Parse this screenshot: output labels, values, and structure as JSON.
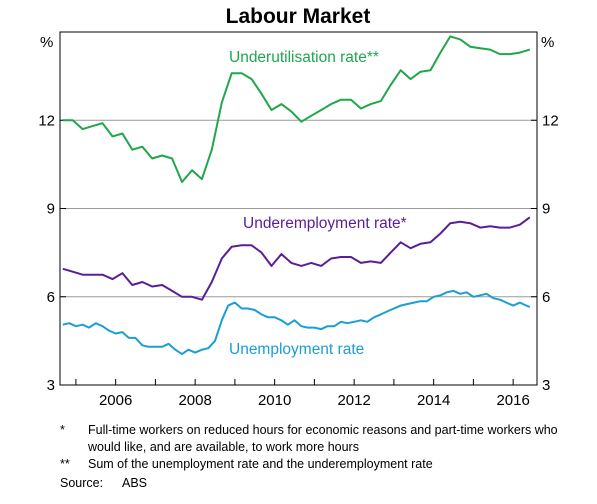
{
  "chart_data": {
    "type": "line",
    "title": "Labour Market",
    "y_unit_left": "%",
    "y_unit_right": "%",
    "ylim": [
      3,
      15
    ],
    "yticks": [
      3,
      6,
      9,
      12
    ],
    "xlim": [
      2004.6,
      2016.6
    ],
    "xticks": [
      2006,
      2008,
      2010,
      2012,
      2014,
      2016
    ],
    "grid": "horizontal",
    "colors": {
      "underutilisation": "#1fa74a",
      "underemployment": "#5a1e96",
      "unemployment": "#1a9ed3"
    },
    "series": [
      {
        "key": "underutilisation",
        "name": "Underutilisation rate**",
        "x": [
          2004.67,
          2004.92,
          2005.17,
          2005.42,
          2005.67,
          2005.92,
          2006.17,
          2006.42,
          2006.67,
          2006.92,
          2007.17,
          2007.42,
          2007.67,
          2007.92,
          2008.17,
          2008.42,
          2008.67,
          2008.92,
          2009.17,
          2009.42,
          2009.67,
          2009.92,
          2010.17,
          2010.42,
          2010.67,
          2010.92,
          2011.17,
          2011.42,
          2011.67,
          2011.92,
          2012.17,
          2012.42,
          2012.67,
          2012.92,
          2013.17,
          2013.42,
          2013.67,
          2013.92,
          2014.17,
          2014.42,
          2014.67,
          2014.92,
          2015.17,
          2015.42,
          2015.67,
          2015.92,
          2016.17,
          2016.42
        ],
        "y": [
          12.0,
          12.0,
          11.7,
          11.8,
          11.9,
          11.45,
          11.55,
          11.0,
          11.1,
          10.7,
          10.8,
          10.7,
          9.9,
          10.3,
          10.0,
          11.0,
          12.6,
          13.6,
          13.6,
          13.4,
          12.9,
          12.35,
          12.55,
          12.3,
          11.95,
          12.15,
          12.35,
          12.55,
          12.7,
          12.7,
          12.4,
          12.55,
          12.65,
          13.2,
          13.7,
          13.4,
          13.65,
          13.7,
          14.3,
          14.85,
          14.75,
          14.5,
          14.45,
          14.4,
          14.25,
          14.25,
          14.3,
          14.4
        ]
      },
      {
        "key": "underemployment",
        "name": "Underemployment rate*",
        "x": [
          2004.67,
          2004.92,
          2005.17,
          2005.42,
          2005.67,
          2005.92,
          2006.17,
          2006.42,
          2006.67,
          2006.92,
          2007.17,
          2007.42,
          2007.67,
          2007.92,
          2008.17,
          2008.42,
          2008.67,
          2008.92,
          2009.17,
          2009.42,
          2009.67,
          2009.92,
          2010.17,
          2010.42,
          2010.67,
          2010.92,
          2011.17,
          2011.42,
          2011.67,
          2011.92,
          2012.17,
          2012.42,
          2012.67,
          2012.92,
          2013.17,
          2013.42,
          2013.67,
          2013.92,
          2014.17,
          2014.42,
          2014.67,
          2014.92,
          2015.17,
          2015.42,
          2015.67,
          2015.92,
          2016.17,
          2016.42
        ],
        "y": [
          6.95,
          6.85,
          6.75,
          6.75,
          6.75,
          6.6,
          6.8,
          6.4,
          6.5,
          6.35,
          6.4,
          6.2,
          6.0,
          6.0,
          5.9,
          6.5,
          7.3,
          7.7,
          7.75,
          7.75,
          7.5,
          7.05,
          7.45,
          7.15,
          7.05,
          7.15,
          7.05,
          7.3,
          7.35,
          7.35,
          7.15,
          7.2,
          7.15,
          7.5,
          7.85,
          7.65,
          7.8,
          7.85,
          8.15,
          8.5,
          8.55,
          8.5,
          8.35,
          8.4,
          8.35,
          8.35,
          8.45,
          8.7
        ]
      },
      {
        "key": "unemployment",
        "name": "Unemployment rate",
        "x": [
          2004.67,
          2004.83,
          2005.0,
          2005.17,
          2005.33,
          2005.5,
          2005.67,
          2005.83,
          2006.0,
          2006.17,
          2006.33,
          2006.5,
          2006.67,
          2006.83,
          2007.0,
          2007.17,
          2007.33,
          2007.5,
          2007.67,
          2007.83,
          2008.0,
          2008.17,
          2008.33,
          2008.5,
          2008.67,
          2008.83,
          2009.0,
          2009.17,
          2009.33,
          2009.5,
          2009.67,
          2009.83,
          2010.0,
          2010.17,
          2010.33,
          2010.5,
          2010.67,
          2010.83,
          2011.0,
          2011.17,
          2011.33,
          2011.5,
          2011.67,
          2011.83,
          2012.0,
          2012.17,
          2012.33,
          2012.5,
          2012.67,
          2012.83,
          2013.0,
          2013.17,
          2013.33,
          2013.5,
          2013.67,
          2013.83,
          2014.0,
          2014.17,
          2014.33,
          2014.5,
          2014.67,
          2014.83,
          2015.0,
          2015.17,
          2015.33,
          2015.5,
          2015.67,
          2015.83,
          2016.0,
          2016.17,
          2016.33,
          2016.42
        ],
        "y": [
          5.05,
          5.1,
          5.0,
          5.05,
          4.95,
          5.1,
          5.0,
          4.85,
          4.75,
          4.8,
          4.6,
          4.6,
          4.35,
          4.3,
          4.3,
          4.3,
          4.4,
          4.2,
          4.05,
          4.2,
          4.1,
          4.2,
          4.25,
          4.5,
          5.2,
          5.7,
          5.8,
          5.6,
          5.6,
          5.55,
          5.4,
          5.3,
          5.3,
          5.2,
          5.05,
          5.2,
          5.0,
          4.95,
          4.95,
          4.9,
          5.0,
          5.0,
          5.15,
          5.1,
          5.15,
          5.2,
          5.15,
          5.3,
          5.4,
          5.5,
          5.6,
          5.7,
          5.75,
          5.8,
          5.85,
          5.85,
          6.0,
          6.05,
          6.15,
          6.2,
          6.1,
          6.15,
          6.0,
          6.05,
          6.1,
          5.95,
          5.9,
          5.8,
          5.7,
          5.8,
          5.7,
          5.65
        ]
      }
    ]
  },
  "notes": [
    {
      "mark": "*",
      "text": "Full-time workers on reduced hours for economic reasons and part-time workers who would like, and are available, to work more hours"
    },
    {
      "mark": "**",
      "text": "Sum of the unemployment rate and the underemployment rate"
    }
  ],
  "source": {
    "label": "Source:",
    "value": "ABS"
  }
}
